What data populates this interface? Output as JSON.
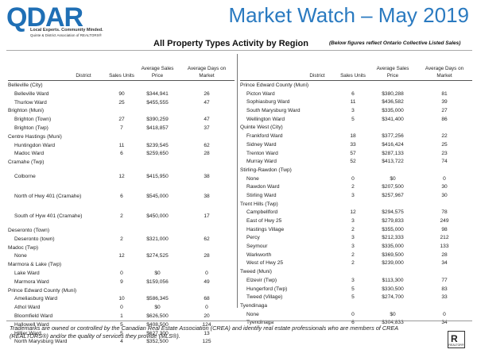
{
  "logo": {
    "brand": "QDAR",
    "tagline": "Local Experts. Community Minded.",
    "association": "Quinte & District Association of REALTORS®"
  },
  "title": "Market Watch – May 2019",
  "subtitle": "All Property Types Activity by Region",
  "subnote": "(Below figures reflect Ontario Collective Listed Sales)",
  "headers": {
    "district": "District",
    "units": "Sales Units",
    "price_line1": "Average Sales",
    "price_line2": "Price",
    "days_line1": "Average Days on",
    "days_line2": "Market"
  },
  "left_rows": [
    {
      "name": "Belleville (City)",
      "group": true
    },
    {
      "name": "Belleville Ward",
      "units": "90",
      "price": "$344,941",
      "days": "26"
    },
    {
      "name": "Thurlow Ward",
      "units": "25",
      "price": "$455,555",
      "days": "47"
    },
    {
      "name": "Brighton (Muni)",
      "group": true
    },
    {
      "name": "Brighton (Town)",
      "units": "27",
      "price": "$390,259",
      "days": "47"
    },
    {
      "name": "Brighton (Twp)",
      "units": "7",
      "price": "$418,857",
      "days": "37"
    },
    {
      "name": "Centre Hastings (Muni)",
      "group": true
    },
    {
      "name": "Huntingdon Ward",
      "units": "11",
      "price": "$239,545",
      "days": "62"
    },
    {
      "name": "Madoc Ward",
      "units": "6",
      "price": "$259,650",
      "days": "28"
    },
    {
      "name": "Cramahe (Twp)",
      "group": true
    },
    {
      "name": "Colborne",
      "units": "12",
      "price": "$415,950",
      "days": "38",
      "tall": true
    },
    {
      "name": "North of Hwy 401 (Cramahe)",
      "units": "6",
      "price": "$545,000",
      "days": "38",
      "tall": true
    },
    {
      "name": "South of Hyw 401 (Cramahe)",
      "units": "2",
      "price": "$450,000",
      "days": "17",
      "tall": true
    },
    {
      "name": "Deseronto (Town)",
      "group": true
    },
    {
      "name": "Deseronto (town)",
      "units": "2",
      "price": "$321,000",
      "days": "62"
    },
    {
      "name": "Madoc (Twp)",
      "group": true
    },
    {
      "name": "None",
      "units": "12",
      "price": "$274,525",
      "days": "28"
    },
    {
      "name": "Marmora & Lake (Twp)",
      "group": true
    },
    {
      "name": "Lake Ward",
      "units": "0",
      "price": "$0",
      "days": "0"
    },
    {
      "name": "Marmora Ward",
      "units": "9",
      "price": "$159,056",
      "days": "49"
    },
    {
      "name": "Prince Edward County (Muni)",
      "group": true
    },
    {
      "name": "Ameliasburg Ward",
      "units": "10",
      "price": "$586,345",
      "days": "68"
    },
    {
      "name": "Athol Ward",
      "units": "0",
      "price": "$0",
      "days": "0"
    },
    {
      "name": "Bloomfield Ward",
      "units": "1",
      "price": "$626,500",
      "days": "20"
    },
    {
      "name": "Hallowell Ward",
      "units": "5",
      "price": "$408,500",
      "days": "124"
    },
    {
      "name": "Hillier Ward",
      "units": "5",
      "price": "$627,300",
      "days": "13"
    },
    {
      "name": "North Marysburg Ward",
      "units": "4",
      "price": "$352,500",
      "days": "125"
    }
  ],
  "right_rows": [
    {
      "name": "Prince Edward County (Muni)",
      "group": true
    },
    {
      "name": "Picton Ward",
      "units": "6",
      "price": "$380,288",
      "days": "81"
    },
    {
      "name": "Sophiasburg Ward",
      "units": "11",
      "price": "$436,582",
      "days": "39"
    },
    {
      "name": "South Marysburg Ward",
      "units": "3",
      "price": "$335,000",
      "days": "27"
    },
    {
      "name": "Wellington Ward",
      "units": "5",
      "price": "$341,400",
      "days": "86"
    },
    {
      "name": "Quinte West (City)",
      "group": true
    },
    {
      "name": "Frankford Ward",
      "units": "18",
      "price": "$377,256",
      "days": "22"
    },
    {
      "name": "Sidney Ward",
      "units": "33",
      "price": "$416,424",
      "days": "25"
    },
    {
      "name": "Trenton Ward",
      "units": "57",
      "price": "$287,133",
      "days": "23"
    },
    {
      "name": "Murray Ward",
      "units": "52",
      "price": "$413,722",
      "days": "74"
    },
    {
      "name": "Stirling-Rawdon (Twp)",
      "group": true
    },
    {
      "name": "None",
      "units": "0",
      "price": "$0",
      "days": "0"
    },
    {
      "name": "Rawdon Ward",
      "units": "2",
      "price": "$207,500",
      "days": "30"
    },
    {
      "name": "Stirling Ward",
      "units": "3",
      "price": "$257,967",
      "days": "30"
    },
    {
      "name": "Trent Hills (Twp)",
      "group": true
    },
    {
      "name": "Campbellford",
      "units": "12",
      "price": "$294,575",
      "days": "78"
    },
    {
      "name": "East of Hwy 25",
      "units": "3",
      "price": "$279,833",
      "days": "249"
    },
    {
      "name": "Hastings Village",
      "units": "2",
      "price": "$355,000",
      "days": "98"
    },
    {
      "name": "Percy",
      "units": "3",
      "price": "$212,333",
      "days": "212"
    },
    {
      "name": "Seymour",
      "units": "3",
      "price": "$335,000",
      "days": "133"
    },
    {
      "name": "Warkworth",
      "units": "2",
      "price": "$369,500",
      "days": "28"
    },
    {
      "name": "West of Hwy 25",
      "units": "2",
      "price": "$239,000",
      "days": "34"
    },
    {
      "name": "Tweed (Muni)",
      "group": true
    },
    {
      "name": "Elzevir (Twp)",
      "units": "3",
      "price": "$113,300",
      "days": "77"
    },
    {
      "name": "Hungerford (Twp)",
      "units": "5",
      "price": "$330,500",
      "days": "83"
    },
    {
      "name": "Tweed (Village)",
      "units": "5",
      "price": "$274,700",
      "days": "33"
    },
    {
      "name": "Tyendinaga",
      "group": true
    },
    {
      "name": "None",
      "units": "0",
      "price": "$0",
      "days": "0"
    },
    {
      "name": "Tyendinaga",
      "units": "6",
      "price": "$304,833",
      "days": "34"
    }
  ],
  "footer": "Trademarks are owned or controlled by the Canadian Real Estate Association (CREA) and identify real estate professionals who are members of CREA (REALTORS®) and/or the quality of services they provide (MLS®).",
  "realtor_badge": {
    "letter": "R",
    "text": "REALTOR®"
  }
}
